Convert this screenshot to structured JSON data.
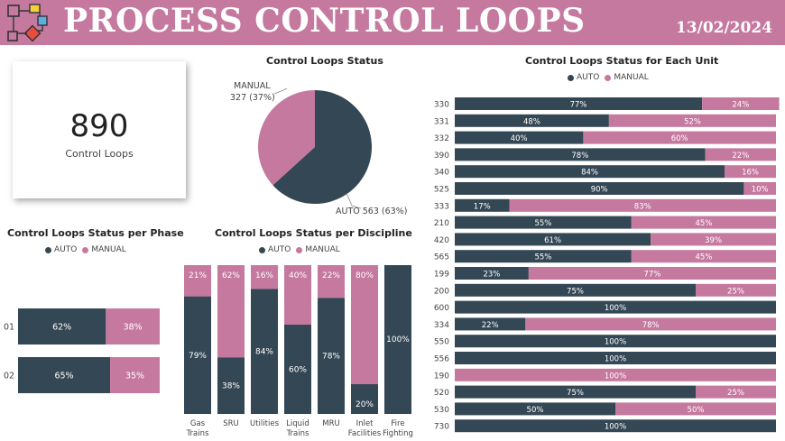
{
  "header": {
    "title": "PROCESS CONTROL LOOPS",
    "date": "13/02/2024",
    "logo_icon": "process-flow-icon"
  },
  "colors": {
    "auto": "#344754",
    "manual": "#c5799f",
    "header_bg": "#c5799f"
  },
  "kpi": {
    "value": "890",
    "label": "Control Loops"
  },
  "legend": {
    "auto": "AUTO",
    "manual": "MANUAL"
  },
  "chart_data": [
    {
      "id": "status_pie",
      "type": "pie",
      "title": "Control Loops Status",
      "slices": [
        {
          "label": "AUTO",
          "value": 563,
          "percent": 63,
          "data_label": "AUTO 563 (63%)"
        },
        {
          "label": "MANUAL",
          "value": 327,
          "percent": 37,
          "data_label_line1": "MANUAL",
          "data_label_line2": "327 (37%)"
        }
      ]
    },
    {
      "id": "phase_bar",
      "type": "bar",
      "orientation": "horizontal",
      "stacked": "100%",
      "title": "Control Loops Status per Phase",
      "legend_position": "top",
      "categories": [
        "01",
        "02"
      ],
      "series": [
        {
          "name": "AUTO",
          "values": [
            62,
            65
          ]
        },
        {
          "name": "MANUAL",
          "values": [
            38,
            35
          ]
        }
      ]
    },
    {
      "id": "discipline_bar",
      "type": "bar",
      "orientation": "vertical",
      "stacked": "100%",
      "title": "Control Loops Status per Discipline",
      "legend_position": "top",
      "categories": [
        "Gas Trains",
        "SRU",
        "Utilities",
        "Liquid Trains",
        "MRU",
        "Inlet Facilities",
        "Fire Fighting"
      ],
      "series": [
        {
          "name": "AUTO",
          "values": [
            79,
            38,
            84,
            60,
            78,
            20,
            100
          ]
        },
        {
          "name": "MANUAL",
          "values": [
            21,
            62,
            16,
            40,
            22,
            80,
            0
          ]
        }
      ]
    },
    {
      "id": "unit_bar",
      "type": "bar",
      "orientation": "horizontal",
      "stacked": "100%",
      "title": "Control Loops Status for Each Unit",
      "legend_position": "top",
      "categories": [
        "330",
        "331",
        "332",
        "390",
        "340",
        "525",
        "333",
        "210",
        "420",
        "565",
        "199",
        "200",
        "600",
        "334",
        "550",
        "556",
        "190",
        "520",
        "530",
        "730"
      ],
      "series": [
        {
          "name": "AUTO",
          "values": [
            77,
            48,
            40,
            78,
            84,
            90,
            17,
            55,
            61,
            55,
            23,
            75,
            100,
            22,
            100,
            100,
            0,
            75,
            50,
            100
          ]
        },
        {
          "name": "MANUAL",
          "values": [
            24,
            52,
            60,
            22,
            16,
            10,
            83,
            45,
            39,
            45,
            77,
            25,
            0,
            78,
            0,
            0,
            100,
            25,
            50,
            0
          ]
        }
      ]
    }
  ]
}
